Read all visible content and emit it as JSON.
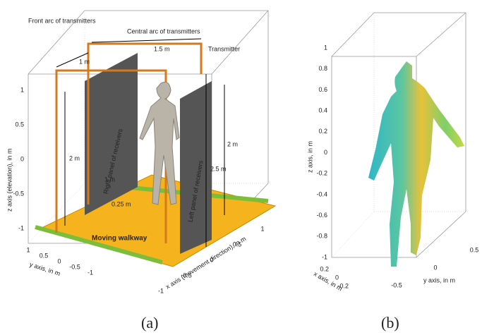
{
  "panel_a": {
    "caption": "(a)",
    "annotations": [
      "Front arc of transmitters",
      "Central arc of transmitters",
      "Transmitter",
      "1 m",
      "1.5 m",
      "Right panel of receivers",
      "Left panel of receivers",
      "2 m",
      "2.5 m",
      "2 m",
      "1 m",
      "0.25 m",
      "Moving walkway"
    ],
    "z_axis": {
      "label": "z axis (elevation), in m",
      "ticks": [
        "1",
        "0.5",
        "0",
        "-0.5",
        "-1"
      ]
    },
    "y_axis": {
      "label": "y axis, in m",
      "ticks": [
        "1",
        "0.5",
        "0",
        "-0.5",
        "-1"
      ]
    },
    "x_axis": {
      "label": "x axis (movement direction), in m",
      "ticks": [
        "1",
        "0.5",
        "0",
        "-0.5",
        "-1"
      ]
    }
  },
  "panel_b": {
    "caption": "(b)",
    "z_axis": {
      "label": "z axis, in m",
      "ticks": [
        "1",
        "0.8",
        "0.6",
        "0.4",
        "0.2",
        "0",
        "-0.2",
        "-0.4",
        "-0.6",
        "-0.8",
        "-1"
      ]
    },
    "x_axis": {
      "label": "x axis, in m",
      "ticks": [
        "0.2",
        "0",
        "-0.2"
      ]
    },
    "y_axis": {
      "label": "y axis, in m",
      "ticks": [
        "0.5",
        "0",
        "-0.5"
      ]
    }
  }
}
